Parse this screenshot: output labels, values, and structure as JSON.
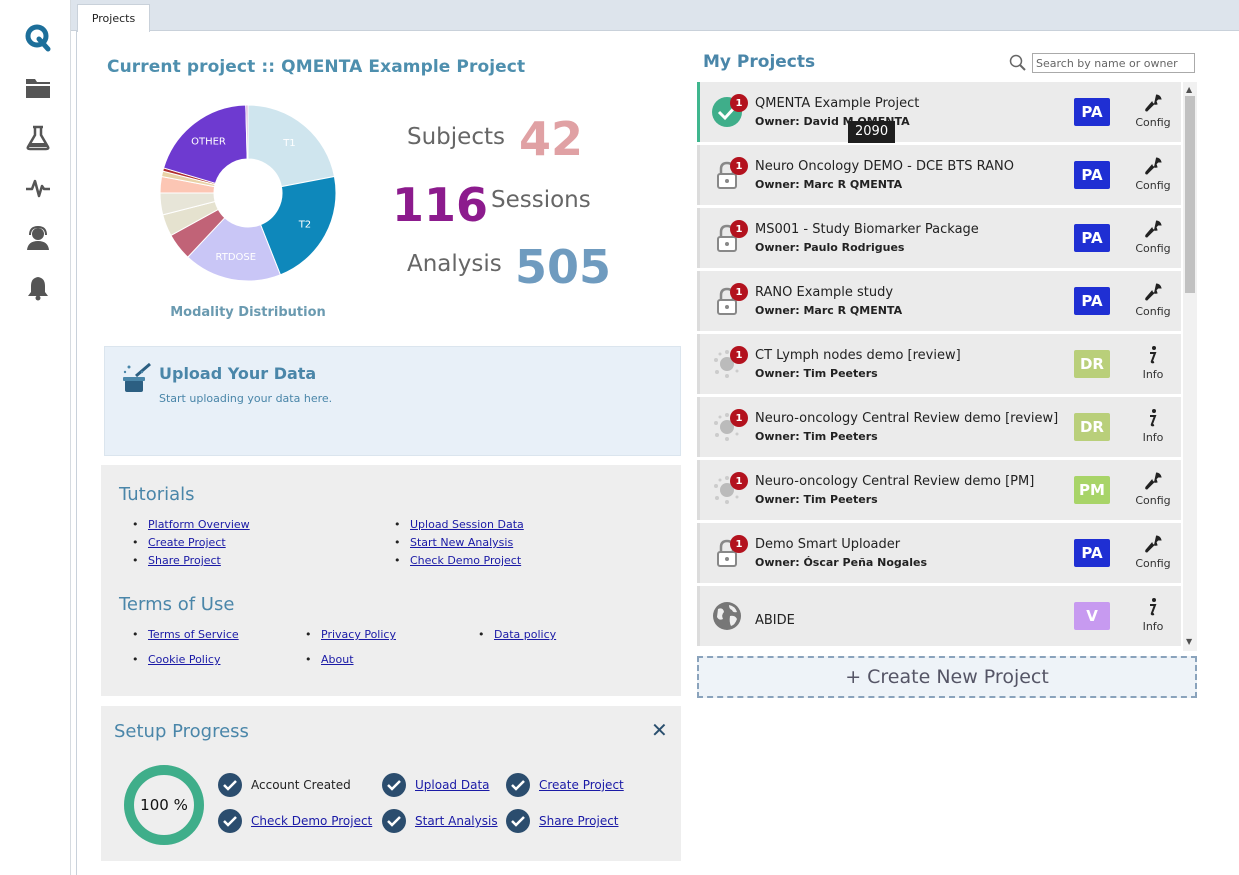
{
  "sidebar": {
    "items": [
      {
        "icon": "qmenta-logo-icon"
      },
      {
        "icon": "folder-icon"
      },
      {
        "icon": "flask-icon"
      },
      {
        "icon": "pulse-icon"
      },
      {
        "icon": "support-agent-icon"
      },
      {
        "icon": "bell-icon"
      }
    ]
  },
  "tabs": [
    {
      "label": "Projects"
    }
  ],
  "current_project": {
    "title": "Current project :: QMENTA Example Project",
    "chart_caption": "Modality Distribution",
    "subjects_label": "Subjects",
    "subjects_value": "42",
    "sessions_label": "Sessions",
    "sessions_value": "116",
    "analysis_label": "Analysis",
    "analysis_value": "505"
  },
  "chart_data": {
    "type": "pie",
    "title": "Modality Distribution",
    "slices": [
      {
        "label": "T1",
        "value": 22,
        "color": "#cfe5ee"
      },
      {
        "label": "T2",
        "value": 22,
        "color": "#0e88bb"
      },
      {
        "label": "RTDOSE",
        "value": 18,
        "color": "#c9c6f6"
      },
      {
        "label": "",
        "value": 5,
        "color": "#c16377"
      },
      {
        "label": "",
        "value": 4,
        "color": "#e5e2cf"
      },
      {
        "label": "",
        "value": 4,
        "color": "#e7e5d8"
      },
      {
        "label": "",
        "value": 3,
        "color": "#fcc6b4"
      },
      {
        "label": "",
        "value": 1,
        "color": "#e9d2a6"
      },
      {
        "label": "",
        "value": 0.6,
        "color": "#b02f2f"
      },
      {
        "label": "OTHER",
        "value": 20,
        "color": "#6e3ad0"
      },
      {
        "label": "",
        "value": 0.4,
        "color": "#d4a7d6"
      }
    ]
  },
  "upload": {
    "title": "Upload Your Data",
    "subtitle": "Start uploading your data here."
  },
  "tutorials": {
    "title": "Tutorials",
    "links": [
      "Platform Overview",
      "Create Project",
      "Share Project",
      "Upload Session Data",
      "Start New Analysis",
      "Check Demo Project"
    ]
  },
  "terms": {
    "title": "Terms of Use",
    "links": [
      "Terms of Service",
      "Privacy Policy",
      "Data policy",
      "Cookie Policy",
      "About"
    ]
  },
  "setup": {
    "title": "Setup Progress",
    "close": "✕",
    "progress_text": "100 %",
    "progress": 1.0,
    "steps": [
      "Account Created",
      "Upload Data",
      "Create Project",
      "Check Demo Project",
      "Start Analysis",
      "Share Project"
    ]
  },
  "my_projects": {
    "title": "My Projects",
    "search_placeholder": "Search by name or owner",
    "tooltip": "2090",
    "create_label": "+ Create New Project",
    "projects": [
      {
        "name": "QMENTA Example Project",
        "owner": "Owner: David M QMENTA",
        "badge": "1",
        "role": "PA",
        "action": "Config",
        "icon": "check-circle-icon"
      },
      {
        "name": "Neuro Oncology DEMO - DCE BTS RANO",
        "owner": "Owner: Marc R QMENTA",
        "badge": "1",
        "role": "PA",
        "action": "Config",
        "icon": "lock-icon"
      },
      {
        "name": "MS001 - Study Biomarker Package",
        "owner": "Owner: Paulo Rodrigues",
        "badge": "1",
        "role": "PA",
        "action": "Config",
        "icon": "lock-icon"
      },
      {
        "name": "RANO Example study",
        "owner": "Owner: Marc R QMENTA",
        "badge": "1",
        "role": "PA",
        "action": "Config",
        "icon": "lock-icon"
      },
      {
        "name": "CT Lymph nodes demo [review]",
        "owner": "Owner: Tim Peeters",
        "badge": "1",
        "role": "DR",
        "action": "Info",
        "icon": "spinner-icon"
      },
      {
        "name": "Neuro-oncology Central Review demo [review]",
        "owner": "Owner: Tim Peeters",
        "badge": "1",
        "role": "DR",
        "action": "Info",
        "icon": "spinner-icon"
      },
      {
        "name": "Neuro-oncology Central Review demo [PM]",
        "owner": "Owner: Tim Peeters",
        "badge": "1",
        "role": "PM",
        "action": "Config",
        "icon": "spinner-icon"
      },
      {
        "name": "Demo Smart Uploader",
        "owner": "Owner: Óscar Peña Nogales",
        "badge": "1",
        "role": "PA",
        "action": "Config",
        "icon": "lock-icon"
      },
      {
        "name": "ABIDE",
        "owner": "",
        "badge": "",
        "role": "V",
        "action": "Info",
        "icon": "globe-icon"
      }
    ]
  }
}
